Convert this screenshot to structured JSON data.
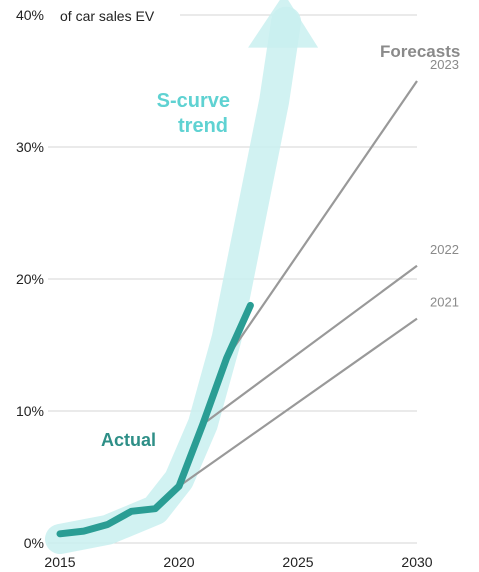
{
  "chart_data": {
    "type": "line",
    "y_unit_label": "of car sales EV",
    "x_ticks": [
      "2015",
      "2020",
      "2025",
      "2030"
    ],
    "y_ticks": [
      "0%",
      "10%",
      "20%",
      "30%",
      "40%"
    ],
    "xlim": [
      2015,
      2030
    ],
    "ylim": [
      0,
      40
    ],
    "grid": true,
    "series": [
      {
        "name": "Actual",
        "color": "#2a9d94",
        "points": [
          [
            2015,
            0.7
          ],
          [
            2016,
            0.9
          ],
          [
            2017,
            1.4
          ],
          [
            2018,
            2.4
          ],
          [
            2019,
            2.6
          ],
          [
            2020,
            4.3
          ],
          [
            2021,
            9.0
          ],
          [
            2022,
            14.0
          ],
          [
            2023,
            18.0
          ]
        ]
      }
    ],
    "forecasts": {
      "title": "Forecasts",
      "color": "#999999",
      "lines": [
        {
          "name": "2023",
          "start": [
            2022,
            14.0
          ],
          "end": [
            2030,
            35.0
          ]
        },
        {
          "name": "2022",
          "start": [
            2021,
            9.0
          ],
          "end": [
            2030,
            21.0
          ]
        },
        {
          "name": "2021",
          "start": [
            2020,
            4.3
          ],
          "end": [
            2030,
            17.0
          ]
        }
      ]
    },
    "trend": {
      "label_line1": "S-curve",
      "label_line2": "trend",
      "color": "#c9f0f0",
      "points": [
        [
          2015,
          0.3
        ],
        [
          2017,
          1.0
        ],
        [
          2019,
          2.5
        ],
        [
          2020,
          4.8
        ],
        [
          2021,
          9.0
        ],
        [
          2022,
          15.5
        ],
        [
          2023,
          24.5
        ],
        [
          2024,
          33.5
        ],
        [
          2024.5,
          39.5
        ]
      ]
    },
    "annotations": {
      "actual": "Actual"
    }
  }
}
